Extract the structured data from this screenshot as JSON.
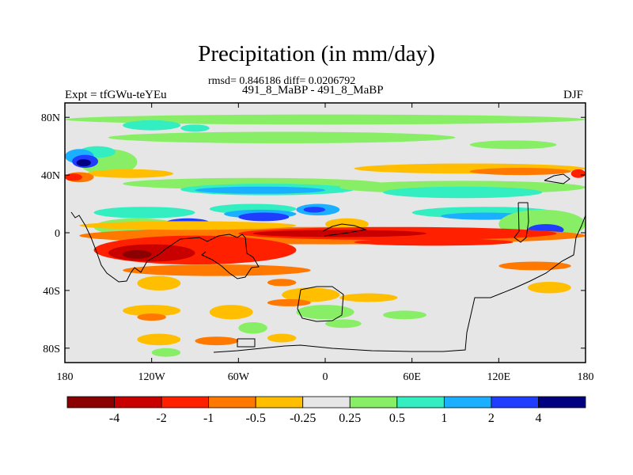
{
  "title": "Precipitation (in mm/day)",
  "stats": "rmsd= 0.846186 diff= 0.0206792",
  "runs": "491_8_MaBP - 491_8_MaBP",
  "experiment": "Expt = tfGWu-teYEu",
  "season": "DJF",
  "chart_data": {
    "type": "heatmap",
    "map_projection": "cylindrical-equidistant",
    "variable": "Precipitation",
    "units": "mm/day",
    "lon_range": [
      -180,
      180
    ],
    "lat_range": [
      -90,
      90
    ],
    "x_ticks": [
      {
        "value": -180,
        "label": "180"
      },
      {
        "value": -120,
        "label": "120W"
      },
      {
        "value": -60,
        "label": "60W"
      },
      {
        "value": 0,
        "label": "0"
      },
      {
        "value": 60,
        "label": "60E"
      },
      {
        "value": 120,
        "label": "120E"
      },
      {
        "value": 180,
        "label": "180"
      }
    ],
    "y_ticks": [
      {
        "value": 80,
        "label": "80N"
      },
      {
        "value": 40,
        "label": "40N"
      },
      {
        "value": 0,
        "label": "0"
      },
      {
        "value": -40,
        "label": "40S"
      },
      {
        "value": -80,
        "label": "80S"
      }
    ],
    "colorbar": {
      "labels": [
        "-4",
        "-2",
        "-1",
        "-0.5",
        "-0.25",
        "0.25",
        "0.5",
        "1",
        "2",
        "4"
      ],
      "colors": [
        "#8b0000",
        "#c80000",
        "#ff2000",
        "#ff7800",
        "#ffbe00",
        "#e6e6e6",
        "#88ee66",
        "#33eec0",
        "#1ab0ff",
        "#1f3cff",
        "#000080"
      ]
    },
    "regions": [
      {
        "level": 6,
        "lon": -180,
        "lat": 82,
        "w": 360,
        "h": 7
      },
      {
        "level": 6,
        "lon": -150,
        "lat": 70,
        "w": 240,
        "h": 8
      },
      {
        "level": 6,
        "lon": 100,
        "lat": 64,
        "w": 60,
        "h": 6
      },
      {
        "level": 6,
        "lon": -170,
        "lat": 58,
        "w": 40,
        "h": 18
      },
      {
        "level": 7,
        "lon": -140,
        "lat": 78,
        "w": 40,
        "h": 7
      },
      {
        "level": 7,
        "lon": -100,
        "lat": 75,
        "w": 20,
        "h": 5
      },
      {
        "level": 7,
        "lon": -170,
        "lat": 60,
        "w": 25,
        "h": 8
      },
      {
        "level": 8,
        "lon": -180,
        "lat": 58,
        "w": 20,
        "h": 10
      },
      {
        "level": 9,
        "lon": -175,
        "lat": 54,
        "w": 18,
        "h": 9
      },
      {
        "level": 10,
        "lon": -172,
        "lat": 51,
        "w": 10,
        "h": 5
      },
      {
        "level": 4,
        "lon": -165,
        "lat": 44,
        "w": 60,
        "h": 6
      },
      {
        "level": 3,
        "lon": -180,
        "lat": 42,
        "w": 20,
        "h": 7
      },
      {
        "level": 2,
        "lon": -180,
        "lat": 41,
        "w": 12,
        "h": 5
      },
      {
        "level": 4,
        "lon": 20,
        "lat": 48,
        "w": 160,
        "h": 7
      },
      {
        "level": 3,
        "lon": 100,
        "lat": 45,
        "w": 70,
        "h": 5
      },
      {
        "level": 2,
        "lon": 170,
        "lat": 44,
        "w": 10,
        "h": 6
      },
      {
        "level": 6,
        "lon": -140,
        "lat": 38,
        "w": 180,
        "h": 8
      },
      {
        "level": 7,
        "lon": -100,
        "lat": 34,
        "w": 120,
        "h": 8
      },
      {
        "level": 8,
        "lon": -90,
        "lat": 32,
        "w": 90,
        "h": 5
      },
      {
        "level": 6,
        "lon": 10,
        "lat": 36,
        "w": 170,
        "h": 9
      },
      {
        "level": 7,
        "lon": 40,
        "lat": 32,
        "w": 110,
        "h": 8
      },
      {
        "level": 7,
        "lon": -160,
        "lat": 18,
        "w": 70,
        "h": 8
      },
      {
        "level": 6,
        "lon": -160,
        "lat": 10,
        "w": 60,
        "h": 12
      },
      {
        "level": 7,
        "lon": -80,
        "lat": 20,
        "w": 60,
        "h": 7
      },
      {
        "level": 8,
        "lon": -70,
        "lat": 16,
        "w": 50,
        "h": 6
      },
      {
        "level": 9,
        "lon": -60,
        "lat": 14,
        "w": 35,
        "h": 6
      },
      {
        "level": 9,
        "lon": -110,
        "lat": 10,
        "w": 30,
        "h": 6
      },
      {
        "level": 8,
        "lon": -20,
        "lat": 20,
        "w": 30,
        "h": 8
      },
      {
        "level": 9,
        "lon": -15,
        "lat": 18,
        "w": 15,
        "h": 4
      },
      {
        "level": 7,
        "lon": 60,
        "lat": 18,
        "w": 100,
        "h": 8
      },
      {
        "level": 8,
        "lon": 80,
        "lat": 14,
        "w": 60,
        "h": 5
      },
      {
        "level": 6,
        "lon": 120,
        "lat": 16,
        "w": 60,
        "h": 20
      },
      {
        "level": 9,
        "lon": 140,
        "lat": 6,
        "w": 25,
        "h": 8
      },
      {
        "level": 3,
        "lon": -170,
        "lat": 4,
        "w": 350,
        "h": 12
      },
      {
        "level": 4,
        "lon": -170,
        "lat": 8,
        "w": 150,
        "h": 6
      },
      {
        "level": 4,
        "lon": 0,
        "lat": 10,
        "w": 30,
        "h": 8
      },
      {
        "level": 2,
        "lon": -160,
        "lat": -2,
        "w": 140,
        "h": 20
      },
      {
        "level": 1,
        "lon": -150,
        "lat": -8,
        "w": 60,
        "h": 12
      },
      {
        "level": 0,
        "lon": -140,
        "lat": -12,
        "w": 20,
        "h": 6
      },
      {
        "level": 2,
        "lon": -60,
        "lat": 4,
        "w": 220,
        "h": 9
      },
      {
        "level": 1,
        "lon": -50,
        "lat": 2,
        "w": 120,
        "h": 5
      },
      {
        "level": 2,
        "lon": 20,
        "lat": -4,
        "w": 110,
        "h": 5
      },
      {
        "level": 3,
        "lon": -140,
        "lat": -22,
        "w": 130,
        "h": 8
      },
      {
        "level": 4,
        "lon": -130,
        "lat": -30,
        "w": 30,
        "h": 10
      },
      {
        "level": 3,
        "lon": -40,
        "lat": -32,
        "w": 20,
        "h": 5
      },
      {
        "level": 4,
        "lon": -30,
        "lat": -38,
        "w": 40,
        "h": 10
      },
      {
        "level": 3,
        "lon": 120,
        "lat": -20,
        "w": 50,
        "h": 6
      },
      {
        "level": 4,
        "lon": 140,
        "lat": -34,
        "w": 30,
        "h": 8
      },
      {
        "level": 4,
        "lon": -140,
        "lat": -50,
        "w": 40,
        "h": 8
      },
      {
        "level": 3,
        "lon": -130,
        "lat": -56,
        "w": 20,
        "h": 5
      },
      {
        "level": 4,
        "lon": -80,
        "lat": -50,
        "w": 30,
        "h": 10
      },
      {
        "level": 3,
        "lon": -40,
        "lat": -46,
        "w": 30,
        "h": 5
      },
      {
        "level": 4,
        "lon": 10,
        "lat": -42,
        "w": 40,
        "h": 6
      },
      {
        "level": 4,
        "lon": -130,
        "lat": -70,
        "w": 30,
        "h": 8
      },
      {
        "level": 3,
        "lon": -90,
        "lat": -72,
        "w": 30,
        "h": 6
      },
      {
        "level": 4,
        "lon": -40,
        "lat": -70,
        "w": 20,
        "h": 6
      },
      {
        "level": 6,
        "lon": -20,
        "lat": -50,
        "w": 40,
        "h": 10
      },
      {
        "level": 6,
        "lon": 0,
        "lat": -60,
        "w": 25,
        "h": 6
      },
      {
        "level": 6,
        "lon": -60,
        "lat": -62,
        "w": 20,
        "h": 8
      },
      {
        "level": 6,
        "lon": 40,
        "lat": -54,
        "w": 30,
        "h": 6
      },
      {
        "level": 6,
        "lon": -120,
        "lat": -80,
        "w": 20,
        "h": 6
      }
    ],
    "coastline_hint": "Americas, Africa, Eurasia and Antarctica outlines (blocky model grid)"
  }
}
